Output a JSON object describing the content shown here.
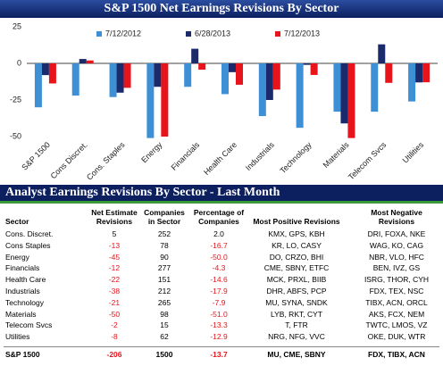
{
  "chart_data": {
    "type": "bar",
    "title": "S&P 1500 Net Earnings Revisions By Sector",
    "categories": [
      "S&P 1500",
      "Cons Discret.",
      "Cons. Staples",
      "Energy",
      "Financials",
      "Health Care",
      "Industrials",
      "Technology",
      "Materials",
      "Telecom Svcs",
      "Utilities"
    ],
    "series": [
      {
        "name": "7/12/2012",
        "color": "#3d8fd6",
        "values": [
          -30,
          -22,
          -23,
          -51,
          -16,
          -21,
          -36,
          -44,
          -33,
          -33,
          -26
        ]
      },
      {
        "name": "6/28/2013",
        "color": "#1b2a6b",
        "values": [
          -8,
          3,
          -20,
          -16,
          10,
          -6,
          -25,
          -1,
          -41,
          13,
          -13
        ]
      },
      {
        "name": "7/12/2013",
        "color": "#e8141b",
        "values": [
          -13.7,
          2.0,
          -16.7,
          -50.0,
          -4.3,
          -14.6,
          -17.9,
          -7.9,
          -51.0,
          -13.3,
          -12.9
        ]
      }
    ],
    "ylim": [
      -50,
      25
    ],
    "yticks": [
      -50,
      -25,
      0,
      25
    ],
    "grid": false
  },
  "table": {
    "title": "Analyst Earnings Revisions By Sector - Last Month",
    "header": [
      "Sector",
      "Net Estimate\nRevisions",
      "Companies\nin Sector",
      "Percentage of\nCompanies",
      "Most Positive Revisions",
      "Most Negative\nRevisions"
    ],
    "rows": [
      [
        "Cons. Discret.",
        "5",
        "252",
        "2.0",
        "KMX, GPS, KBH",
        "DRI, FOXA, NKE"
      ],
      [
        "Cons Staples",
        "-13",
        "78",
        "-16.7",
        "KR, LO, CASY",
        "WAG, KO, CAG"
      ],
      [
        "Energy",
        "-45",
        "90",
        "-50.0",
        "DO, CRZO, BHI",
        "NBR, VLO, HFC"
      ],
      [
        "Financials",
        "-12",
        "277",
        "-4.3",
        "CME, SBNY, ETFC",
        "BEN, IVZ, GS"
      ],
      [
        "Health Care",
        "-22",
        "151",
        "-14.6",
        "MCK, PRXL, BIIB",
        "ISRG, THOR, CYH"
      ],
      [
        "Industrials",
        "-38",
        "212",
        "-17.9",
        "DHR, ABFS, PCP",
        "FDX, TEX, NSC"
      ],
      [
        "Technology",
        "-21",
        "265",
        "-7.9",
        "MU, SYNA, SNDK",
        "TIBX, ACN, ORCL"
      ],
      [
        "Materials",
        "-50",
        "98",
        "-51.0",
        "LYB, RKT, CYT",
        "AKS, FCX, NEM"
      ],
      [
        "Telecom Svcs",
        "-2",
        "15",
        "-13.3",
        "T, FTR",
        "TWTC, LMOS, VZ"
      ],
      [
        "Utilities",
        "-8",
        "62",
        "-12.9",
        "NRG, NFG, VVC",
        "OKE, DUK, WTR"
      ]
    ],
    "total": [
      "S&P 1500",
      "-206",
      "1500",
      "-13.7",
      "MU, CME, SBNY",
      "FDX, TIBX, ACN"
    ]
  }
}
